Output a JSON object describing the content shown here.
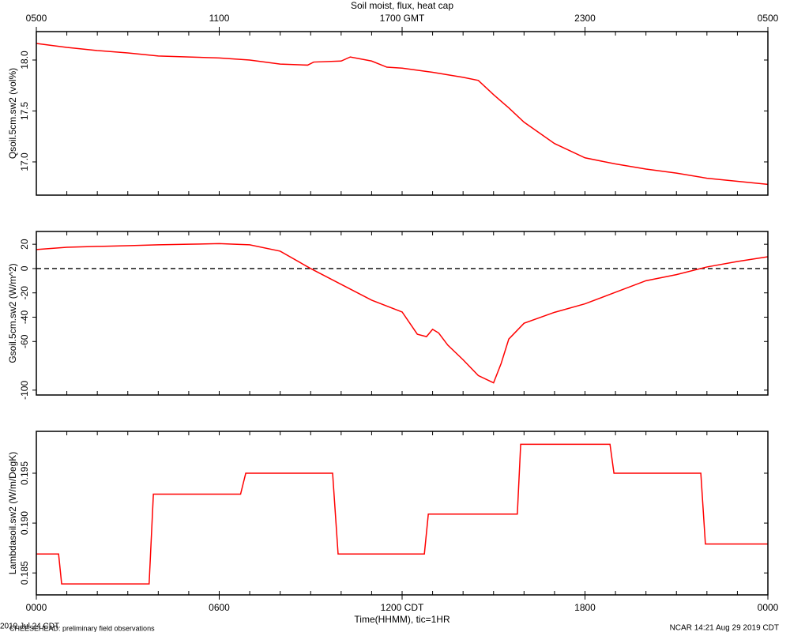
{
  "footer": {
    "date": "2019 Jul 24 CDT",
    "project": "CHEESEHEAD: preliminary field observations",
    "stamp": "NCAR 14:21 Aug 29 2019 CDT"
  },
  "chart_data": [
    {
      "type": "line",
      "title": "Soil moist, flux, heat cap",
      "ylabel": "Qsoil.5cm.sw2 (vol%)",
      "xlim": [
        0,
        24
      ],
      "minor_tick_interval": 1,
      "x2ticks": [
        {
          "value": 0,
          "label": "0500"
        },
        {
          "value": 6,
          "label": "1100"
        },
        {
          "value": 12,
          "label": "1700 GMT"
        },
        {
          "value": 18,
          "label": "2300"
        },
        {
          "value": 24,
          "label": "0500"
        }
      ],
      "ylim": [
        16.674,
        18.279
      ],
      "yticks": [
        {
          "value": 17.0,
          "label": "17.0"
        },
        {
          "value": 17.5,
          "label": "17.5"
        },
        {
          "value": 18.0,
          "label": "18.0"
        }
      ],
      "series": [
        {
          "color": "#ff0000",
          "x": [
            0,
            1,
            2,
            3,
            4,
            5,
            6,
            7,
            8,
            8.9,
            9.1,
            10,
            10.3,
            11,
            11.5,
            12,
            13,
            14,
            14.5,
            15,
            15.5,
            16,
            17,
            18,
            19,
            20,
            21,
            22,
            23,
            24
          ],
          "values": [
            18.163,
            18.124,
            18.093,
            18.07,
            18.04,
            18.03,
            18.02,
            18.0,
            17.96,
            17.95,
            17.98,
            17.99,
            18.03,
            17.99,
            17.93,
            17.92,
            17.88,
            17.83,
            17.8,
            17.66,
            17.53,
            17.39,
            17.18,
            17.04,
            16.98,
            16.93,
            16.89,
            16.84,
            16.81,
            16.78
          ]
        }
      ]
    },
    {
      "type": "line",
      "ylabel": "Gsoil.5cm.sw2 (W/m^2)",
      "xlim": [
        0,
        24
      ],
      "minor_tick_interval": 1,
      "ylim": [
        -104,
        30.5
      ],
      "yticks": [
        20,
        0,
        -20,
        -40,
        -60,
        -100
      ],
      "reference_line": 0,
      "series": [
        {
          "color": "#ff0000",
          "x": [
            0,
            1,
            2,
            3,
            4,
            5,
            6,
            7,
            8,
            9,
            10,
            11,
            12,
            12.5,
            12.8,
            13,
            13.2,
            13.5,
            14,
            14.5,
            15,
            15.25,
            15.5,
            16,
            17,
            18,
            19,
            20,
            21,
            22,
            23,
            24
          ],
          "values": [
            15.6,
            17.5,
            18.2,
            18.8,
            19.5,
            20,
            20.5,
            19.5,
            14.3,
            0,
            -13,
            -26,
            -35.7,
            -54,
            -56,
            -50,
            -53,
            -63,
            -75,
            -88,
            -94,
            -78,
            -58,
            -45,
            -36,
            -29,
            -19.5,
            -10,
            -5,
            1.3,
            5.8,
            9.7
          ]
        }
      ]
    },
    {
      "type": "line",
      "ylabel": "Lambdasoil.sw2 (W/m/DegK)",
      "xlim": [
        0,
        24
      ],
      "minor_tick_interval": 1,
      "xticks": [
        {
          "value": 0,
          "label": "0000"
        },
        {
          "value": 6,
          "label": "0600"
        },
        {
          "value": 12,
          "label": "1200 CDT"
        },
        {
          "value": 18,
          "label": "1800"
        },
        {
          "value": 24,
          "label": "0000"
        }
      ],
      "xlabel": "Time(HHMM), tic=1HR",
      "ylim": [
        0.1828,
        0.1992
      ],
      "yticks": [
        {
          "value": 0.185,
          "label": "0.185"
        },
        {
          "value": 0.19,
          "label": "0.190"
        },
        {
          "value": 0.195,
          "label": "0.195"
        }
      ],
      "series": [
        {
          "color": "#ff0000",
          "x": [
            0,
            0.73,
            0.83,
            3.7,
            3.84,
            6.7,
            6.87,
            9.72,
            9.9,
            12.73,
            12.86,
            15.78,
            15.89,
            18.82,
            18.95,
            21.8,
            21.95,
            24
          ],
          "values": [
            0.1869,
            0.1869,
            0.1839,
            0.1839,
            0.1929,
            0.1929,
            0.195,
            0.195,
            0.1869,
            0.1869,
            0.1909,
            0.1909,
            0.1979,
            0.1979,
            0.195,
            0.195,
            0.1879,
            0.1879
          ]
        }
      ]
    }
  ]
}
